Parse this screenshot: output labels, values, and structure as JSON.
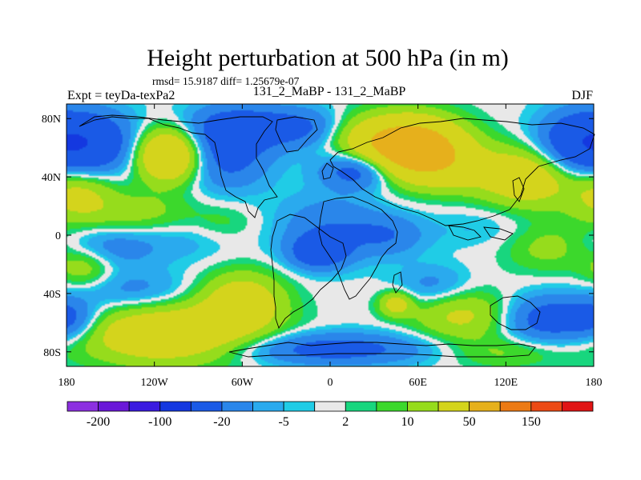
{
  "chart_data": {
    "type": "heatmap",
    "title": "Height perturbation at 500 hPa (in m)",
    "stats_line": "rmsd= 15.9187 diff= 1.25679e-07",
    "left_label": "Expt = teyDa-texPa2",
    "center_label": "131_2_MaBP - 131_2_MaBP",
    "right_label": "DJF",
    "x_range": [
      -180,
      180
    ],
    "y_range": [
      -90,
      90
    ],
    "x_ticks": [
      {
        "value": -180,
        "label": "180"
      },
      {
        "value": -120,
        "label": "120W"
      },
      {
        "value": -60,
        "label": "60W"
      },
      {
        "value": 0,
        "label": "0"
      },
      {
        "value": 60,
        "label": "60E"
      },
      {
        "value": 120,
        "label": "120E"
      },
      {
        "value": 180,
        "label": "180"
      }
    ],
    "y_ticks": [
      {
        "value": 80,
        "label": "80N"
      },
      {
        "value": 40,
        "label": "40N"
      },
      {
        "value": 0,
        "label": "0"
      },
      {
        "value": -40,
        "label": "40S"
      },
      {
        "value": -80,
        "label": "80S"
      }
    ],
    "colorbar": {
      "levels": [
        -200,
        -150,
        -100,
        -50,
        -20,
        -10,
        -5,
        -2,
        2,
        5,
        10,
        20,
        50,
        100,
        150,
        200
      ],
      "colors": [
        "#8c30e0",
        "#6a18d8",
        "#3a1ae0",
        "#1438e0",
        "#1a5ae6",
        "#2a86ea",
        "#2aaaee",
        "#20cce6",
        "#e8e8e8",
        "#18d67e",
        "#3cd82c",
        "#96dc1c",
        "#d4d41c",
        "#e6b01c",
        "#ec7a14",
        "#ec4a14",
        "#e01414"
      ],
      "labeled_levels": [
        {
          "value": -200,
          "label": "-200"
        },
        {
          "value": -100,
          "label": "-100"
        },
        {
          "value": -20,
          "label": "-20"
        },
        {
          "value": -5,
          "label": "-5"
        },
        {
          "value": 2,
          "label": "2"
        },
        {
          "value": 10,
          "label": "10"
        },
        {
          "value": 50,
          "label": "50"
        },
        {
          "value": 150,
          "label": "150"
        }
      ]
    },
    "field_blobs": [
      {
        "lon": -163,
        "lat": 62,
        "amp": -38,
        "wx": 22,
        "wy": 16
      },
      {
        "lon": -110,
        "lat": 55,
        "amp": 55,
        "wx": 16,
        "wy": 13
      },
      {
        "lon": -72,
        "lat": 58,
        "amp": -30,
        "wx": 22,
        "wy": 18
      },
      {
        "lon": -45,
        "lat": 75,
        "amp": -22,
        "wx": 34,
        "wy": 10
      },
      {
        "lon": -15,
        "lat": 72,
        "amp": -10,
        "wx": 18,
        "wy": 10
      },
      {
        "lon": 18,
        "lat": 68,
        "amp": 14,
        "wx": 18,
        "wy": 12
      },
      {
        "lon": 55,
        "lat": 60,
        "amp": 85,
        "wx": 24,
        "wy": 14
      },
      {
        "lon": 20,
        "lat": 45,
        "amp": -36,
        "wx": 18,
        "wy": 9
      },
      {
        "lon": 85,
        "lat": 45,
        "amp": 18,
        "wx": 22,
        "wy": 12
      },
      {
        "lon": 135,
        "lat": 40,
        "amp": 38,
        "wx": 22,
        "wy": 14
      },
      {
        "lon": 168,
        "lat": 62,
        "amp": -34,
        "wx": 20,
        "wy": 16
      },
      {
        "lon": -172,
        "lat": 30,
        "amp": 28,
        "wx": 18,
        "wy": 14
      },
      {
        "lon": -130,
        "lat": 15,
        "amp": 14,
        "wx": 26,
        "wy": 10
      },
      {
        "lon": -75,
        "lat": 8,
        "amp": 10,
        "wx": 18,
        "wy": 10
      },
      {
        "lon": -150,
        "lat": -8,
        "amp": -16,
        "wx": 26,
        "wy": 10
      },
      {
        "lon": -90,
        "lat": 0,
        "amp": -8,
        "wx": 22,
        "wy": 12
      },
      {
        "lon": 0,
        "lat": 5,
        "amp": -18,
        "wx": 26,
        "wy": 16
      },
      {
        "lon": -8,
        "lat": -12,
        "amp": -30,
        "wx": 14,
        "wy": 8
      },
      {
        "lon": 40,
        "lat": 0,
        "amp": -16,
        "wx": 18,
        "wy": 10
      },
      {
        "lon": 105,
        "lat": 5,
        "amp": -6,
        "wx": 26,
        "wy": 10
      },
      {
        "lon": 150,
        "lat": -8,
        "amp": 14,
        "wx": 22,
        "wy": 12
      },
      {
        "lon": -168,
        "lat": -22,
        "amp": 18,
        "wx": 14,
        "wy": 10
      },
      {
        "lon": -135,
        "lat": -38,
        "amp": -14,
        "wx": 28,
        "wy": 10
      },
      {
        "lon": -110,
        "lat": -68,
        "amp": 42,
        "wx": 42,
        "wy": 14
      },
      {
        "lon": -60,
        "lat": -45,
        "amp": 32,
        "wx": 20,
        "wy": 14
      },
      {
        "lon": -178,
        "lat": -58,
        "amp": -24,
        "wx": 14,
        "wy": 10
      },
      {
        "lon": 45,
        "lat": -47,
        "amp": 28,
        "wx": 8,
        "wy": 6
      },
      {
        "lon": 70,
        "lat": -35,
        "amp": -14,
        "wx": 18,
        "wy": 10
      },
      {
        "lon": 90,
        "lat": -55,
        "amp": 24,
        "wx": 24,
        "wy": 12
      },
      {
        "lon": 148,
        "lat": -58,
        "amp": -30,
        "wx": 22,
        "wy": 12
      },
      {
        "lon": 0,
        "lat": -78,
        "amp": -28,
        "wx": 48,
        "wy": 8
      },
      {
        "lon": 120,
        "lat": -80,
        "amp": 12,
        "wx": 28,
        "wy": 8
      }
    ]
  }
}
